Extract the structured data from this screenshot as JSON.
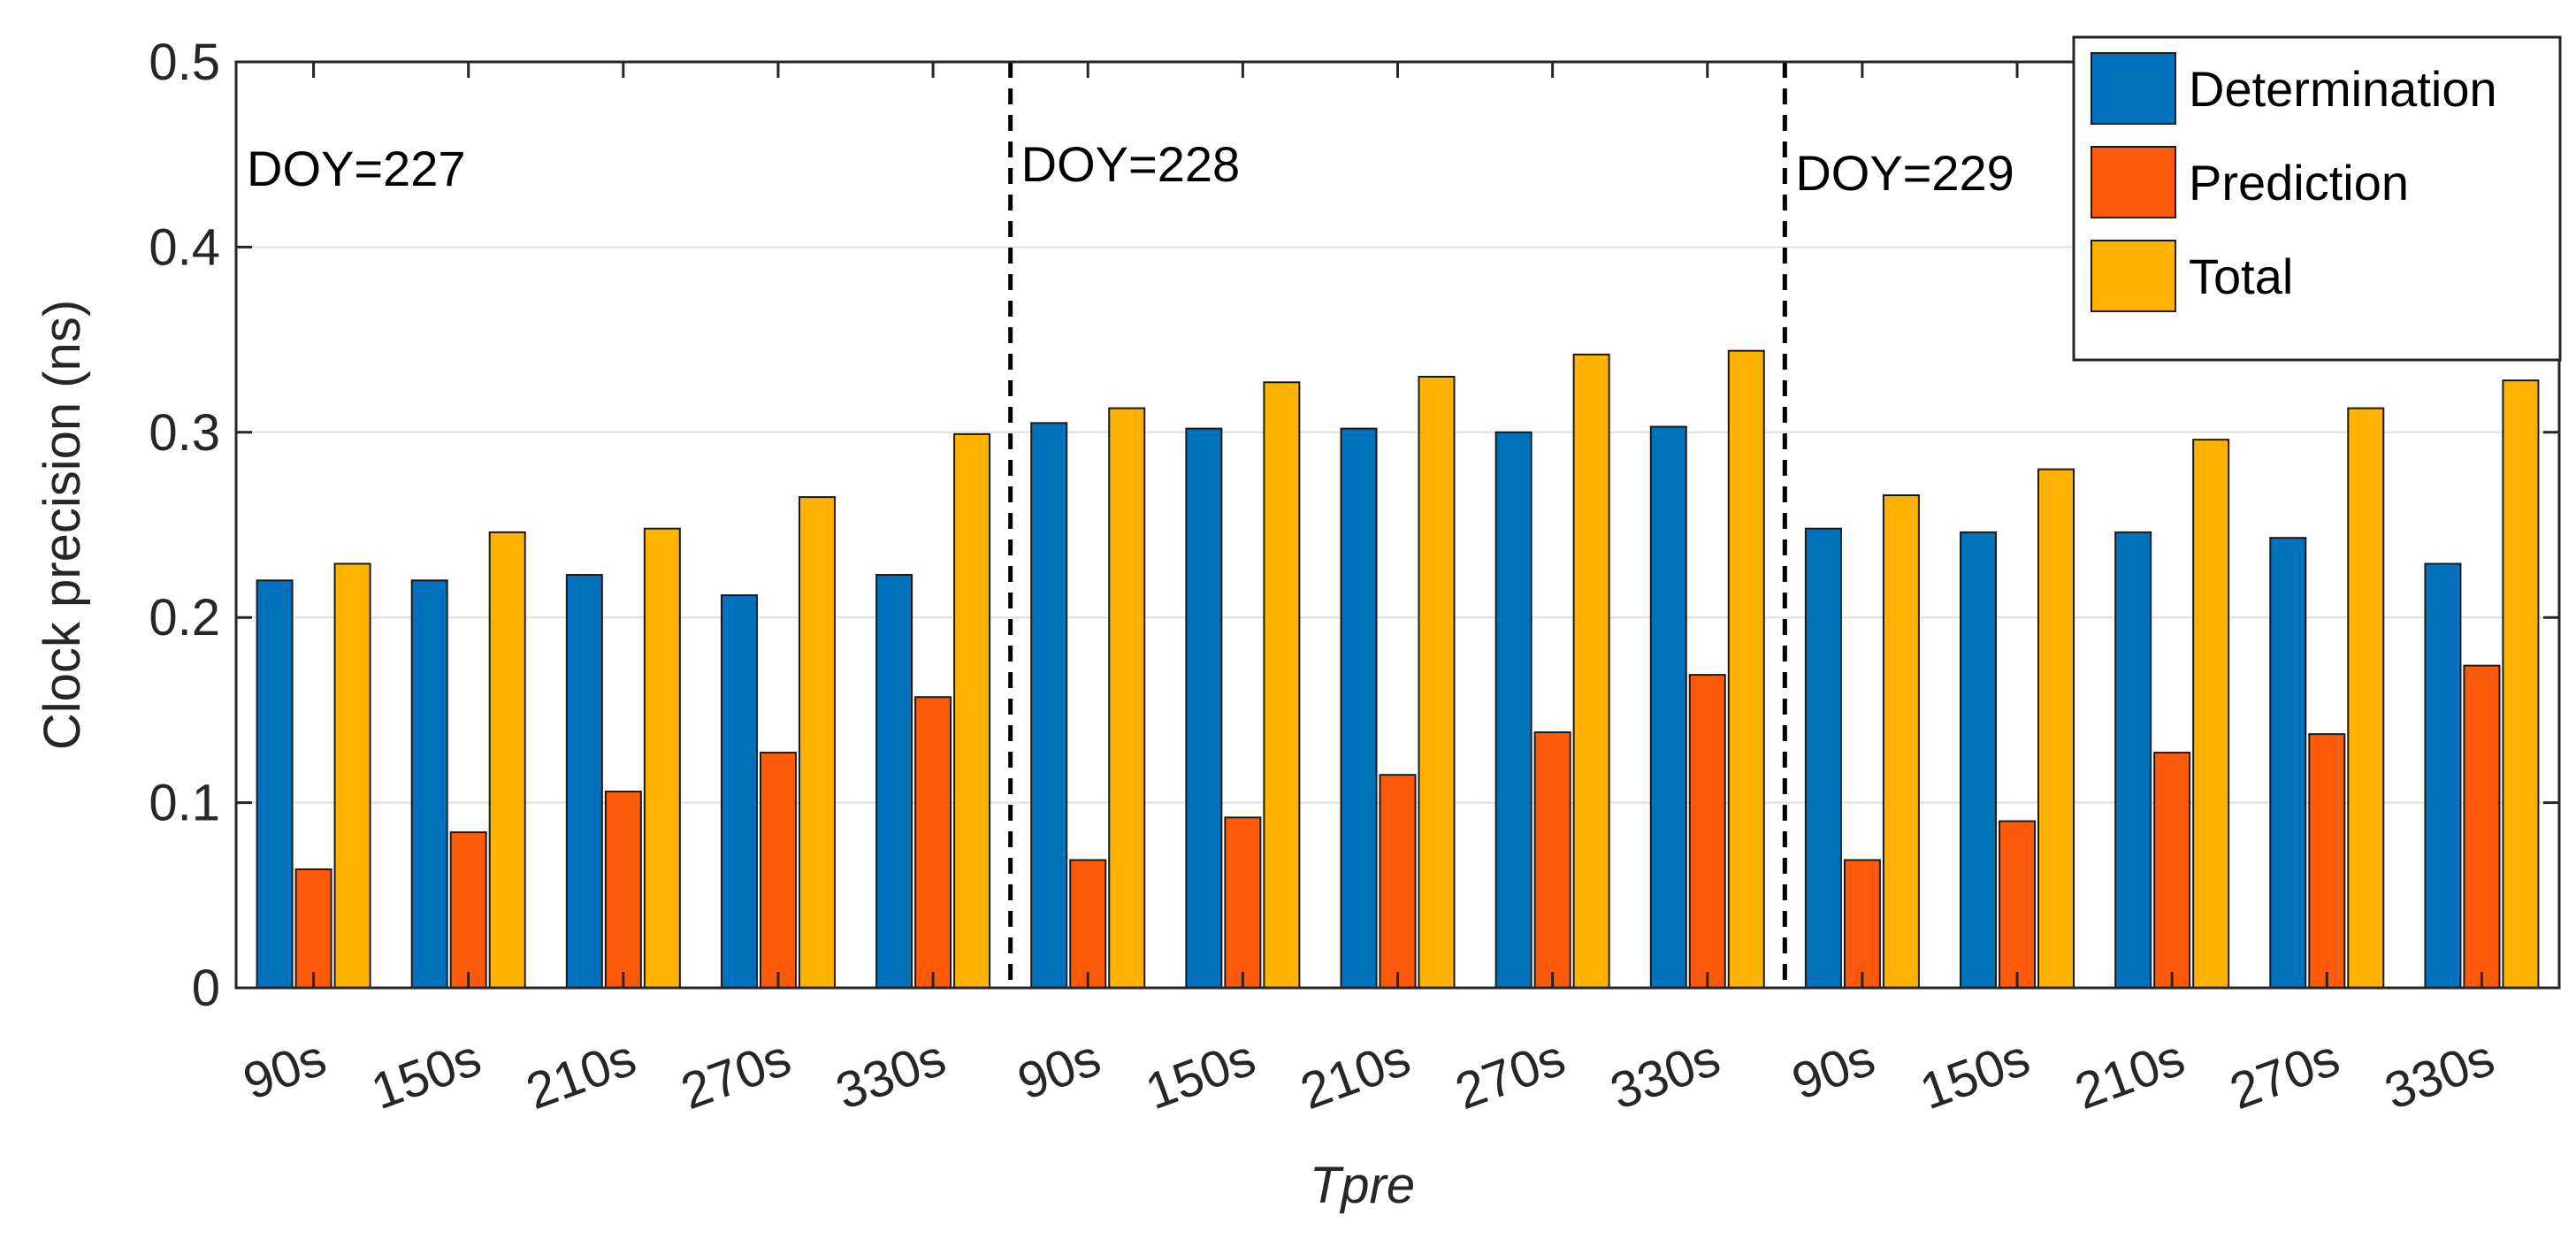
{
  "chart_data": {
    "type": "bar",
    "title": "",
    "xlabel": "Tpre",
    "ylabel": "Clock precision (ns)",
    "ylim": [
      0,
      0.5
    ],
    "yticks": [
      "0",
      "0.1",
      "0.2",
      "0.3",
      "0.4",
      "0.5"
    ],
    "grid": true,
    "legend_position": "top-right",
    "categories": [
      "90s",
      "150s",
      "210s",
      "270s",
      "330s",
      "90s",
      "150s",
      "210s",
      "270s",
      "330s",
      "90s",
      "150s",
      "210s",
      "270s",
      "330s"
    ],
    "groups": [
      {
        "label": "DOY=227",
        "start": 0,
        "end": 4
      },
      {
        "label": "DOY=228",
        "start": 5,
        "end": 9
      },
      {
        "label": "DOY=229",
        "start": 10,
        "end": 14
      }
    ],
    "series": [
      {
        "name": "Determination",
        "color": "#0072BD",
        "values": [
          0.22,
          0.22,
          0.223,
          0.212,
          0.223,
          0.305,
          0.302,
          0.302,
          0.3,
          0.303,
          0.248,
          0.246,
          0.246,
          0.243,
          0.229
        ]
      },
      {
        "name": "Prediction",
        "color": "#FF5A0A",
        "values": [
          0.064,
          0.084,
          0.106,
          0.127,
          0.157,
          0.069,
          0.092,
          0.115,
          0.138,
          0.169,
          0.069,
          0.09,
          0.127,
          0.137,
          0.174
        ]
      },
      {
        "name": "Total",
        "color": "#FFB300",
        "values": [
          0.229,
          0.246,
          0.248,
          0.265,
          0.299,
          0.313,
          0.327,
          0.33,
          0.342,
          0.344,
          0.266,
          0.28,
          0.296,
          0.313,
          0.328
        ]
      }
    ]
  }
}
